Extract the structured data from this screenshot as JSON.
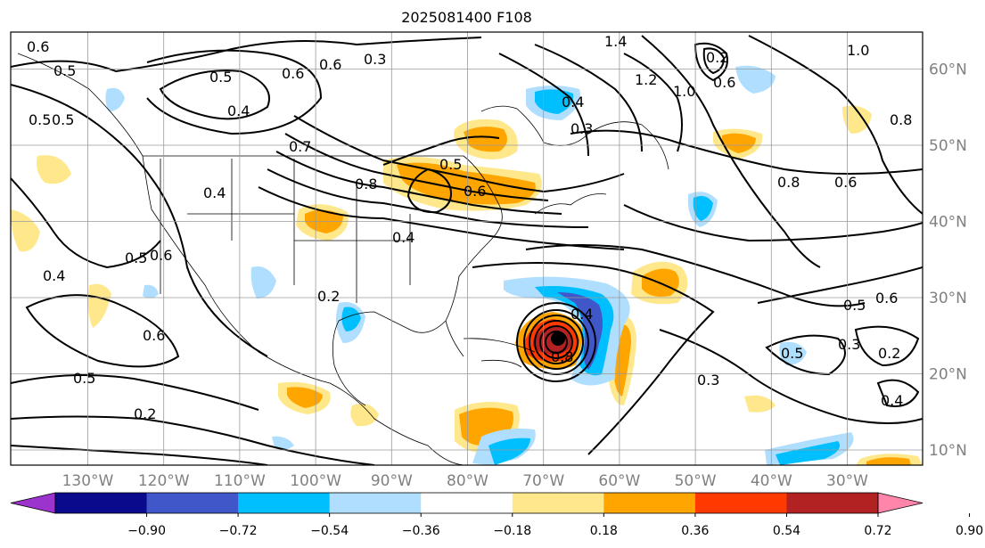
{
  "title": "2025081400 F108",
  "lon_labels": [
    "130°W",
    "120°W",
    "110°W",
    "100°W",
    "90°W",
    "80°W",
    "70°W",
    "60°W",
    "50°W",
    "40°W",
    "30°W"
  ],
  "lat_labels": [
    "60°N",
    "50°N",
    "40°N",
    "30°N",
    "20°N",
    "10°N"
  ],
  "colorbar": {
    "ticks": [
      "−0.90",
      "−0.72",
      "−0.54",
      "−0.36",
      "−0.18",
      "0.18",
      "0.36",
      "0.54",
      "0.72",
      "0.90"
    ],
    "colors": [
      "#9b33cc",
      "#0a0a8c",
      "#3f57c9",
      "#00bfff",
      "#afdeff",
      "#ffffff",
      "#ffe88c",
      "#ffa500",
      "#ff3a00",
      "#b22222",
      "#ff85aa"
    ]
  },
  "contour_labels": [
    "0.6",
    "0.5",
    "0.5",
    "0.4",
    "0.6",
    "0.3",
    "0.6",
    "0.7",
    "1.0",
    "1.4",
    "1.2",
    "1.0",
    "0.2",
    "0.6",
    "0.4",
    "0.3",
    "0.5",
    "0.8",
    "0.6",
    "0.4",
    "0.4",
    "0.5",
    "0.6",
    "0.4",
    "0.5",
    "0.6",
    "0.2",
    "0.5",
    "0.2",
    "0.4",
    "0.3",
    "0.5",
    "0.2",
    "0.6",
    "0.3",
    "0.8",
    "0.8",
    "0.6",
    "0.5",
    "0.4",
    "0.8",
    "0.5"
  ]
}
